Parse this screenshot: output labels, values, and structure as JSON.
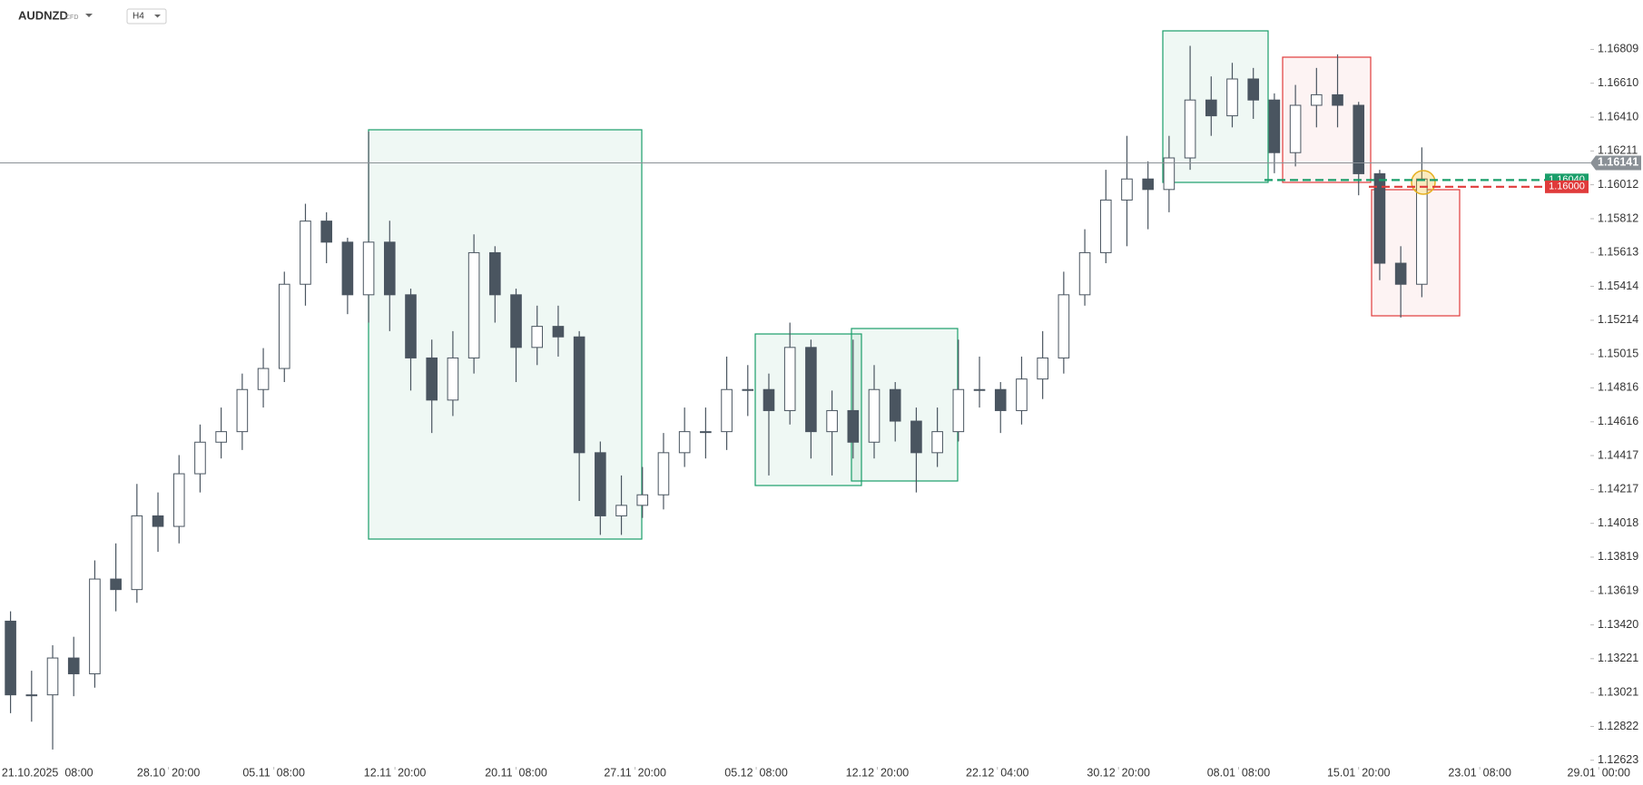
{
  "chart_data": {
    "type": "candlestick",
    "title": "AUDNZD",
    "subtitle": "CFD",
    "timeframe": "H4",
    "open": [
      1.13442,
      1.13008,
      1.13008,
      1.13225,
      1.13132,
      1.1369,
      1.13628,
      1.14062,
      1.14,
      1.1431,
      1.14496,
      1.14558,
      1.14806,
      1.1493,
      1.15426,
      1.15798,
      1.15674,
      1.15364,
      1.15674,
      1.15364,
      1.14992,
      1.14744,
      1.14992,
      1.15612,
      1.15364,
      1.15054,
      1.15178,
      1.15116,
      1.14434,
      1.14062,
      1.14124,
      1.14186,
      1.14434,
      1.14558,
      1.14558,
      1.14806,
      1.14806,
      1.14682,
      1.15054,
      1.14558,
      1.14682,
      1.14496,
      1.14806,
      1.1462,
      1.14434,
      1.14558,
      1.14806,
      1.14806,
      1.14682,
      1.14868,
      1.14992,
      1.15364,
      1.15612,
      1.15922,
      1.16046,
      1.15984,
      1.1617,
      1.16511,
      1.16418,
      1.16635,
      1.16511,
      1.16201,
      1.1648,
      1.16542,
      1.1648,
      1.16077,
      1.1555,
      1.15426
    ],
    "high": [
      1.135,
      1.1315,
      1.133,
      1.1335,
      1.138,
      1.139,
      1.1425,
      1.142,
      1.1442,
      1.146,
      1.147,
      1.149,
      1.1505,
      1.155,
      1.159,
      1.1585,
      1.157,
      1.16325,
      1.158,
      1.154,
      1.151,
      1.1515,
      1.1572,
      1.1565,
      1.154,
      1.153,
      1.153,
      1.1515,
      1.145,
      1.143,
      1.1435,
      1.1455,
      1.147,
      1.147,
      1.15,
      1.1495,
      1.149,
      1.152,
      1.151,
      1.148,
      1.151,
      1.1495,
      1.1485,
      1.147,
      1.147,
      1.151,
      1.15,
      1.1485,
      1.15,
      1.1515,
      1.155,
      1.1575,
      1.161,
      1.163,
      1.1615,
      1.163,
      1.1683,
      1.1665,
      1.1673,
      1.167,
      1.1655,
      1.166,
      1.167,
      1.1678,
      1.165,
      1.161,
      1.1565,
      1.16232
    ],
    "low": [
      1.129,
      1.1285,
      1.12686,
      1.13,
      1.1305,
      1.135,
      1.1355,
      1.1385,
      1.139,
      1.142,
      1.144,
      1.1445,
      1.147,
      1.1485,
      1.153,
      1.1555,
      1.1525,
      1.152,
      1.1515,
      1.148,
      1.1455,
      1.1465,
      1.149,
      1.152,
      1.1485,
      1.1495,
      1.15,
      1.1415,
      1.1395,
      1.1395,
      1.1405,
      1.141,
      1.1435,
      1.144,
      1.1445,
      1.1465,
      1.143,
      1.146,
      1.144,
      1.143,
      1.144,
      1.144,
      1.145,
      1.142,
      1.1435,
      1.145,
      1.147,
      1.1455,
      1.146,
      1.1475,
      1.149,
      1.153,
      1.1555,
      1.1565,
      1.1575,
      1.1585,
      1.161,
      1.163,
      1.1635,
      1.164,
      1.1608,
      1.1612,
      1.1635,
      1.1635,
      1.1595,
      1.1545,
      1.1523,
      1.1535
    ],
    "close": [
      1.13008,
      1.13008,
      1.13225,
      1.13132,
      1.1369,
      1.13628,
      1.14062,
      1.14,
      1.1431,
      1.14496,
      1.14558,
      1.14806,
      1.1493,
      1.15426,
      1.15798,
      1.15674,
      1.15364,
      1.15674,
      1.15364,
      1.14992,
      1.14744,
      1.14992,
      1.15612,
      1.15364,
      1.15054,
      1.15178,
      1.15116,
      1.14434,
      1.14062,
      1.14124,
      1.14186,
      1.14434,
      1.14558,
      1.14558,
      1.14806,
      1.14806,
      1.14682,
      1.15054,
      1.14558,
      1.14682,
      1.14496,
      1.14806,
      1.1462,
      1.14434,
      1.14558,
      1.14806,
      1.14806,
      1.14682,
      1.14868,
      1.14992,
      1.15364,
      1.15612,
      1.15922,
      1.16046,
      1.15984,
      1.1617,
      1.16511,
      1.16418,
      1.16635,
      1.16511,
      1.16201,
      1.1648,
      1.16542,
      1.1648,
      1.16077,
      1.1555,
      1.15426,
      1.16046
    ],
    "up_color": "#ffffff",
    "down_color": "#4a5560",
    "xlim": [
      -0.5,
      77.5
    ],
    "xticks": [
      {
        "value": 1.75,
        "label": "21.10.2025  08:00"
      },
      {
        "value": 7.5,
        "label": "28.10  20:00"
      },
      {
        "value": 12.5,
        "label": "05.11  08:00"
      },
      {
        "value": 18.25,
        "label": "12.11  20:00"
      },
      {
        "value": 24,
        "label": "20.11  08:00"
      },
      {
        "value": 29.65,
        "label": "27.11  20:00"
      },
      {
        "value": 35.4,
        "label": "05.12  08:00"
      },
      {
        "value": 41.15,
        "label": "12.12  20:00"
      },
      {
        "value": 46.85,
        "label": "22.12  04:00"
      },
      {
        "value": 52.6,
        "label": "30.12  20:00"
      },
      {
        "value": 58.3,
        "label": "08.01  08:00"
      },
      {
        "value": 64,
        "label": "15.01  20:00"
      },
      {
        "value": 69.75,
        "label": "23.01  08:00"
      },
      {
        "value": 75.4,
        "label": "29.01  00:00"
      }
    ],
    "ylim": [
      1.12584,
      1.171
    ],
    "yticks": [
      1.16809,
      {
        "value": 1.1661,
        "label": "1.16610"
      },
      {
        "value": 1.1641,
        "label": "1.16410"
      },
      1.16211,
      1.16012,
      1.15812,
      1.15613,
      1.15414,
      1.15214,
      1.15015,
      1.14816,
      1.14616,
      1.14417,
      1.14217,
      1.14018,
      1.13819,
      1.13619,
      {
        "value": 1.1342,
        "label": "1.13420"
      },
      1.13221,
      1.13021,
      1.12822,
      1.12623
    ],
    "last_price": 1.16141,
    "levels": [
      {
        "value": 1.1604,
        "label": "1.16040",
        "color": "#1a9e6a"
      },
      {
        "value": 1.16,
        "label": "1.16000",
        "color": "#e03b3b"
      }
    ]
  }
}
